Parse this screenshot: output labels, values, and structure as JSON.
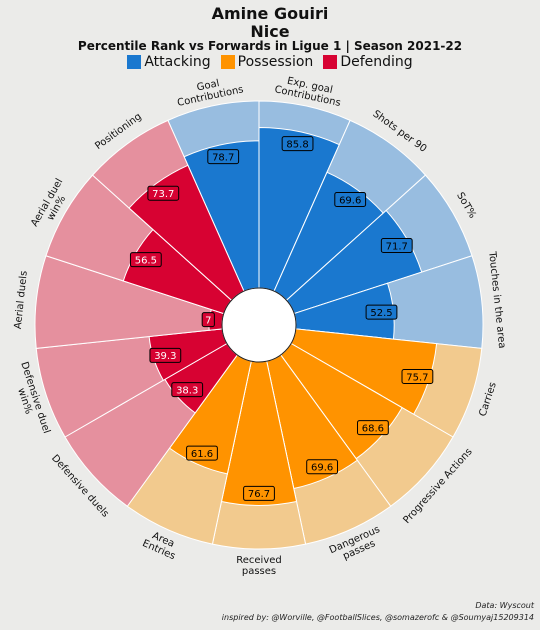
{
  "header": {
    "player": "Amine Gouiri",
    "team": "Nice",
    "subtitle": "Percentile Rank vs Forwards in Ligue 1 | Season 2021-22"
  },
  "legend": [
    {
      "label": "Attacking",
      "color": "#1a78cf"
    },
    {
      "label": "Possession",
      "color": "#ff9300"
    },
    {
      "label": "Defending",
      "color": "#d70232"
    }
  ],
  "footer": {
    "source": "Data: Wyscout",
    "credits": "inspired by: @Worville, @FootballSlices, @somazerofc & @Soumyaj15209314"
  },
  "chart_data": {
    "type": "pie",
    "subtype": "polar-bar",
    "range": [
      0,
      100
    ],
    "categories": [
      "Goal\nContributions",
      "Exp. goal\nContributions",
      "Shots per 90",
      "SoT%",
      "Touches in the area",
      "Carries",
      "Progressive Actions",
      "Dangerous\npasses",
      "Received\npasses",
      "Area\nEntries",
      "Defensive duels",
      "Defensive duel\nwin%",
      "Aerial duels",
      "Aerial duel\nwin%",
      "Positioning"
    ],
    "groups": [
      "Attacking",
      "Attacking",
      "Attacking",
      "Attacking",
      "Attacking",
      "Possession",
      "Possession",
      "Possession",
      "Possession",
      "Possession",
      "Defending",
      "Defending",
      "Defending",
      "Defending",
      "Defending"
    ],
    "values": [
      78.7,
      85.8,
      69.6,
      71.7,
      52.5,
      75.7,
      68.6,
      69.6,
      76.7,
      61.6,
      38.3,
      39.3,
      7,
      56.5,
      73.7
    ],
    "value_labels": [
      "78.7",
      "85.8",
      "69.6",
      "71.7",
      "52.5",
      "75.7",
      "68.6",
      "69.6",
      "76.7",
      "61.6",
      "38.3",
      "39.3",
      "7",
      "56.5",
      "73.7"
    ],
    "value_label_visible": [
      true,
      true,
      true,
      true,
      true,
      true,
      true,
      true,
      true,
      true,
      true,
      true,
      true,
      true,
      true
    ],
    "colors": {
      "Attacking": {
        "value": "#1a78cf",
        "background": "#98bde0"
      },
      "Possession": {
        "value": "#ff9300",
        "background": "#f2ca8e"
      },
      "Defending": {
        "value": "#d70232",
        "background": "#e5909e"
      }
    }
  }
}
